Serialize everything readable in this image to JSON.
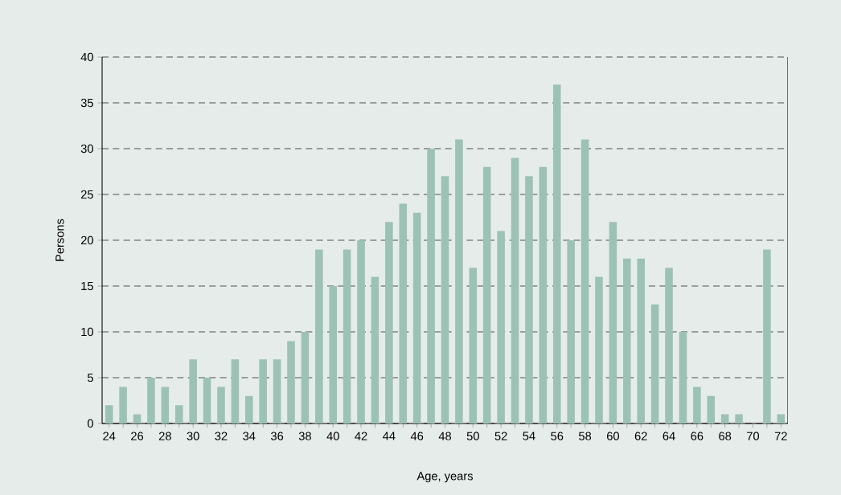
{
  "chart_data": {
    "type": "bar",
    "xlabel": "Age, years",
    "ylabel": "Persons",
    "categories": [
      "24",
      null,
      "26",
      null,
      "28",
      null,
      "30",
      null,
      "32",
      null,
      "34",
      null,
      "36",
      null,
      "38",
      null,
      "40",
      null,
      "42",
      null,
      "44",
      null,
      "46",
      null,
      "48",
      null,
      "50",
      null,
      "52",
      null,
      "54",
      null,
      "56",
      null,
      "58",
      null,
      "60",
      null,
      "62",
      null,
      "64",
      null,
      "66",
      null,
      "68",
      null,
      "70",
      null,
      "72"
    ],
    "values": [
      2,
      4,
      1,
      5,
      4,
      2,
      7,
      5,
      4,
      7,
      3,
      7,
      7,
      9,
      10,
      19,
      15,
      19,
      20,
      16,
      22,
      24,
      23,
      30,
      27,
      31,
      17,
      28,
      21,
      29,
      27,
      28,
      37,
      20,
      31,
      16,
      22,
      18,
      18,
      13,
      17,
      10,
      4,
      3,
      1,
      1,
      0,
      19,
      1
    ],
    "color": "#9cc2b6",
    "ylim": [
      0,
      40
    ],
    "yticks": [
      0,
      5,
      10,
      15,
      20,
      25,
      30,
      35,
      40
    ],
    "grid": "y"
  }
}
